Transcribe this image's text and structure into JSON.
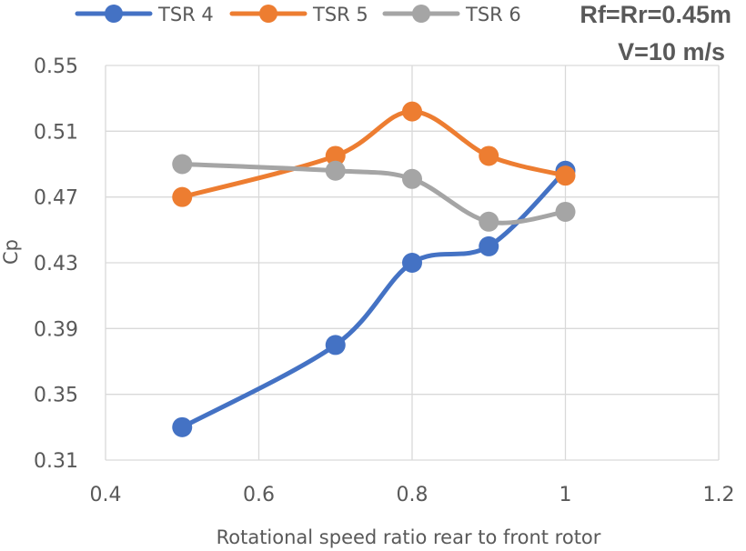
{
  "chart_data": {
    "type": "line",
    "title": "",
    "xlabel": "Rotational speed ratio rear to front rotor",
    "ylabel": "Cp",
    "xlim": [
      0.4,
      1.2
    ],
    "ylim": [
      0.31,
      0.55
    ],
    "xticks": [
      0.4,
      0.6,
      0.8,
      1.0,
      1.2
    ],
    "xtick_labels": [
      "0.4",
      "0.6",
      "0.8",
      "1",
      "1.2"
    ],
    "yticks": [
      0.31,
      0.35,
      0.39,
      0.43,
      0.47,
      0.51,
      0.55
    ],
    "ytick_labels": [
      "0.31",
      "0.35",
      "0.39",
      "0.43",
      "0.47",
      "0.51",
      "0.55"
    ],
    "grid": true,
    "legend_position": "top",
    "smooth": true,
    "annotations": [
      "Rf=Rr=0.45m",
      "V=10 m/s"
    ],
    "series": [
      {
        "name": "TSR 4",
        "color": "#4472c4",
        "x": [
          0.5,
          0.7,
          0.8,
          0.9,
          1.0
        ],
        "y": [
          0.33,
          0.38,
          0.43,
          0.44,
          0.486
        ]
      },
      {
        "name": "TSR 5",
        "color": "#ed7d31",
        "x": [
          0.5,
          0.7,
          0.8,
          0.9,
          1.0
        ],
        "y": [
          0.47,
          0.495,
          0.522,
          0.495,
          0.483
        ]
      },
      {
        "name": "TSR 6",
        "color": "#a5a5a5",
        "x": [
          0.5,
          0.7,
          0.8,
          0.9,
          1.0
        ],
        "y": [
          0.49,
          0.486,
          0.481,
          0.455,
          0.461
        ]
      }
    ]
  }
}
